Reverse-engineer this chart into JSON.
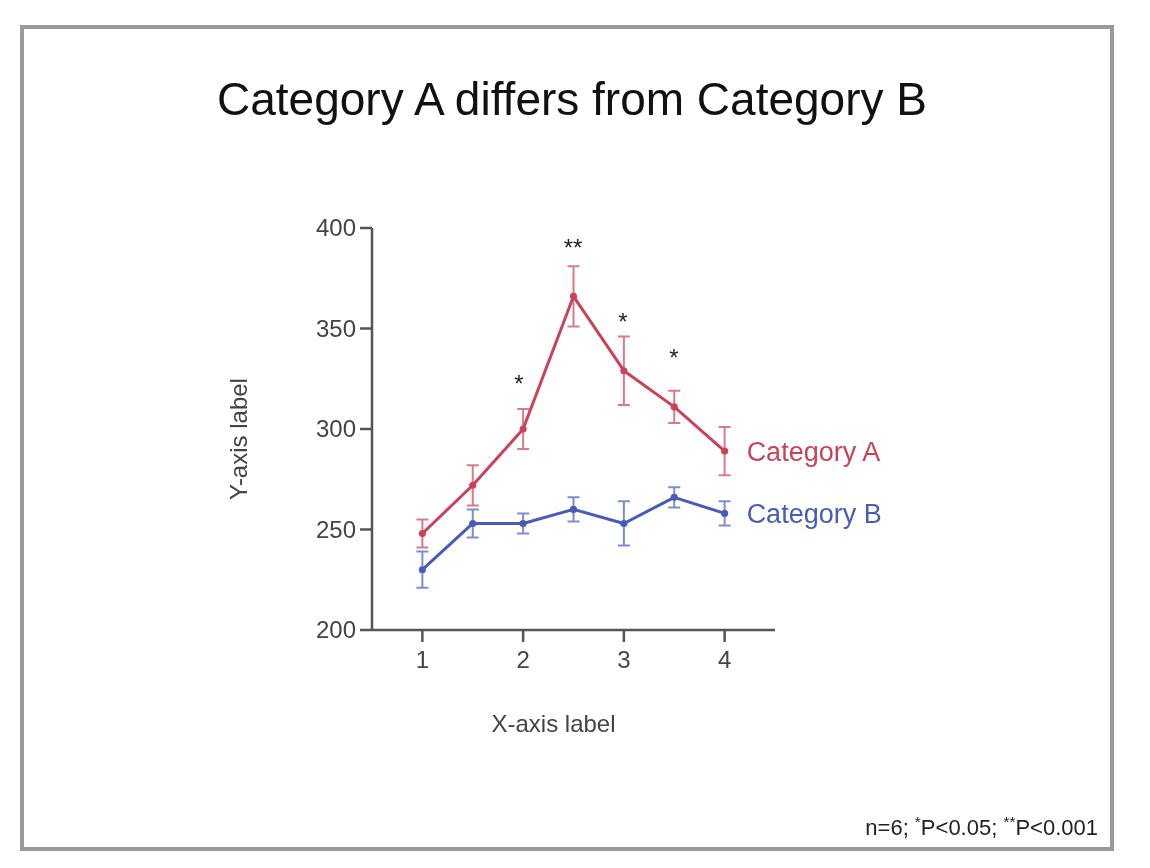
{
  "chart_data": {
    "type": "line",
    "title": "Category A differs from Category B",
    "xlabel": "X-axis label",
    "ylabel": "Y-axis label",
    "x": [
      1,
      1.5,
      2,
      2.5,
      3,
      3.5,
      4
    ],
    "series": [
      {
        "name": "Category A",
        "color": "#c8435a",
        "values": [
          248,
          272,
          300,
          366,
          329,
          311,
          289
        ],
        "errors": [
          7,
          10,
          10,
          15,
          17,
          8,
          12
        ]
      },
      {
        "name": "Category B",
        "color": "#4a5bb5",
        "values": [
          230,
          253,
          253,
          260,
          253,
          266,
          258
        ],
        "errors": [
          9,
          7,
          5,
          6,
          11,
          5,
          6
        ]
      }
    ],
    "xlim": [
      0.5,
      4.5
    ],
    "xticks": [
      1,
      2,
      3,
      4
    ],
    "ylim": [
      200,
      400
    ],
    "yticks": [
      200,
      250,
      300,
      350,
      400
    ],
    "grid": false,
    "legend": false,
    "marker": "circle",
    "line_style": "solid",
    "annotations": [
      "*",
      "**",
      "*",
      "*",
      "n=6; $^{*}$P<0.05; $^{**}$P<0.001"
    ]
  }
}
